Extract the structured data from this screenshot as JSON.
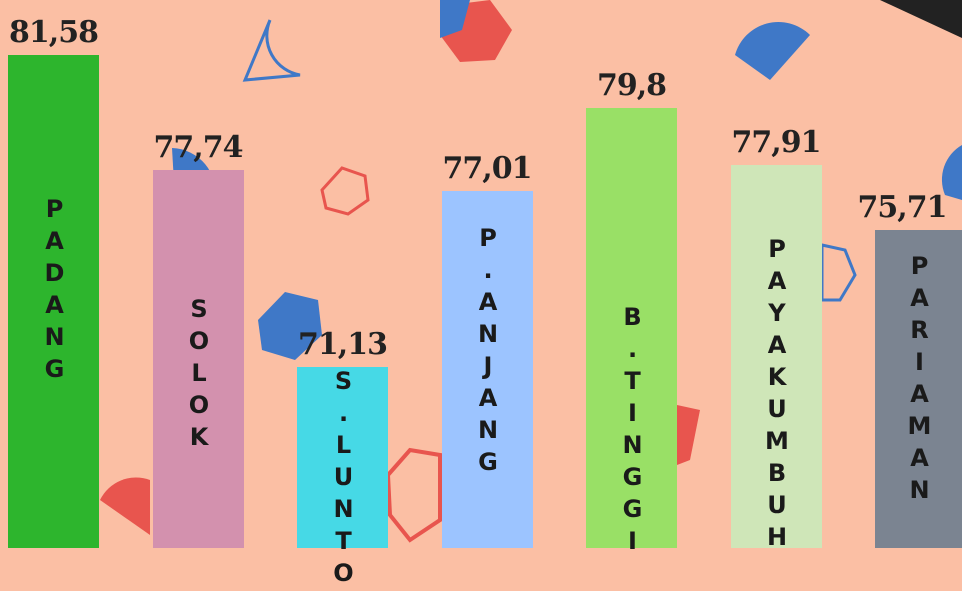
{
  "chart_data": {
    "type": "bar",
    "categories": [
      "PADANG",
      "SOLOK",
      "S.LUNTO",
      "P.ANJANG",
      "B.TINGGI",
      "PAYAKUMBUH",
      "PARIAMAN"
    ],
    "values": [
      81.58,
      77.74,
      71.13,
      77.01,
      79.8,
      77.91,
      75.71
    ],
    "value_labels": [
      "81,58",
      "77,74",
      "71,13",
      "77,01",
      "79,8",
      "77,91",
      "75,71"
    ],
    "colors": [
      "#2db52d",
      "#d391ae",
      "#46d9e6",
      "#9cc4ff",
      "#99e066",
      "#cfe6b8",
      "#7b8491"
    ]
  }
}
